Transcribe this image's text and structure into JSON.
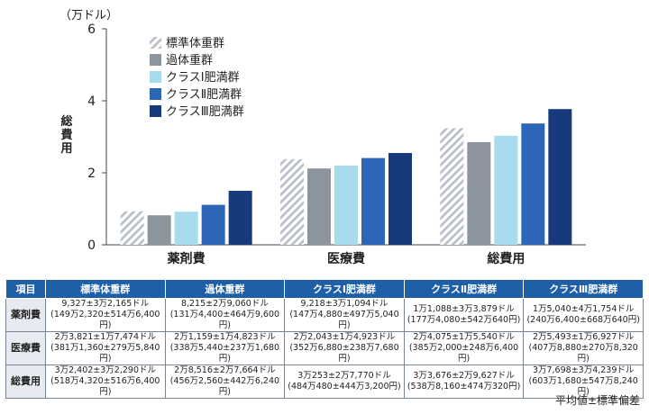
{
  "chart_data": {
    "type": "bar",
    "y_unit": "（万ドル）",
    "ylabel": "総費用",
    "ylim": [
      0,
      6
    ],
    "yticks": [
      0,
      2,
      4,
      6
    ],
    "grid": false,
    "legend_position": "top-left",
    "categories": [
      "薬剤費",
      "医療費",
      "総費用"
    ],
    "series": [
      {
        "name": "標準体重群",
        "pattern": "hatch",
        "color": "#c9ced6",
        "values": [
          0.93,
          2.38,
          3.24
        ]
      },
      {
        "name": "過体重群",
        "color": "#8c959e",
        "values": [
          0.82,
          2.12,
          2.85
        ]
      },
      {
        "name": "クラスⅠ肥満群",
        "color": "#a8dbee",
        "values": [
          0.92,
          2.2,
          3.03
        ]
      },
      {
        "name": "クラスⅡ肥満群",
        "color": "#2d66b6",
        "values": [
          1.11,
          2.41,
          3.37
        ]
      },
      {
        "name": "クラスⅢ肥満群",
        "color": "#163a7c",
        "values": [
          1.5,
          2.55,
          3.77
        ]
      }
    ]
  },
  "table": {
    "headers": [
      "項目",
      "標準体重群",
      "過体重群",
      "クラスⅠ肥満群",
      "クラスⅡ肥満群",
      "クラスⅢ肥満群"
    ],
    "rows": [
      {
        "label": "薬剤費",
        "cells": [
          [
            "9,327±3万2,165ドル",
            "(149万2,320±514万6,400円)"
          ],
          [
            "8,215±2万9,060ドル",
            "(131万4,400±464万9,600円)"
          ],
          [
            "9,218±3万1,094ドル",
            "(147万4,880±497万5,040円)"
          ],
          [
            "1万1,088±3万3,879ドル",
            "(177万4,080±542万640円)"
          ],
          [
            "1万5,040±4万1,754ドル",
            "(240万6,400±668万640円)"
          ]
        ]
      },
      {
        "label": "医療費",
        "cells": [
          [
            "2万3,821±1万7,474ドル",
            "(381万1,360±279万5,840円)"
          ],
          [
            "2万1,159±1万4,823ドル",
            "(338万5,440±237万1,680円)"
          ],
          [
            "2万2,043±1万4,923ドル",
            "(352万6,880±238万7,680円)"
          ],
          [
            "2万4,075±1万5,540ドル",
            "(385万2,000±248万6,400円)"
          ],
          [
            "2万5,493±1万6,927ドル",
            "(407万8,880±270万8,320円)"
          ]
        ]
      },
      {
        "label": "総費用",
        "cells": [
          [
            "3万2,402±3万2,290ドル",
            "(518万4,320±516万6,400円)"
          ],
          [
            "2万8,516±2万7,664ドル",
            "(456万2,560±442万6,240円)"
          ],
          [
            "3万253±2万7,770ドル",
            "(484万480±444万3,200円)"
          ],
          [
            "3万3,676±2万9,627ドル",
            "(538万8,160±474万320円)"
          ],
          [
            "3万7,698±3万4,239ドル",
            "(603万1,680±547万8,240円)"
          ]
        ]
      }
    ]
  },
  "note": "平均値±標準偏差"
}
